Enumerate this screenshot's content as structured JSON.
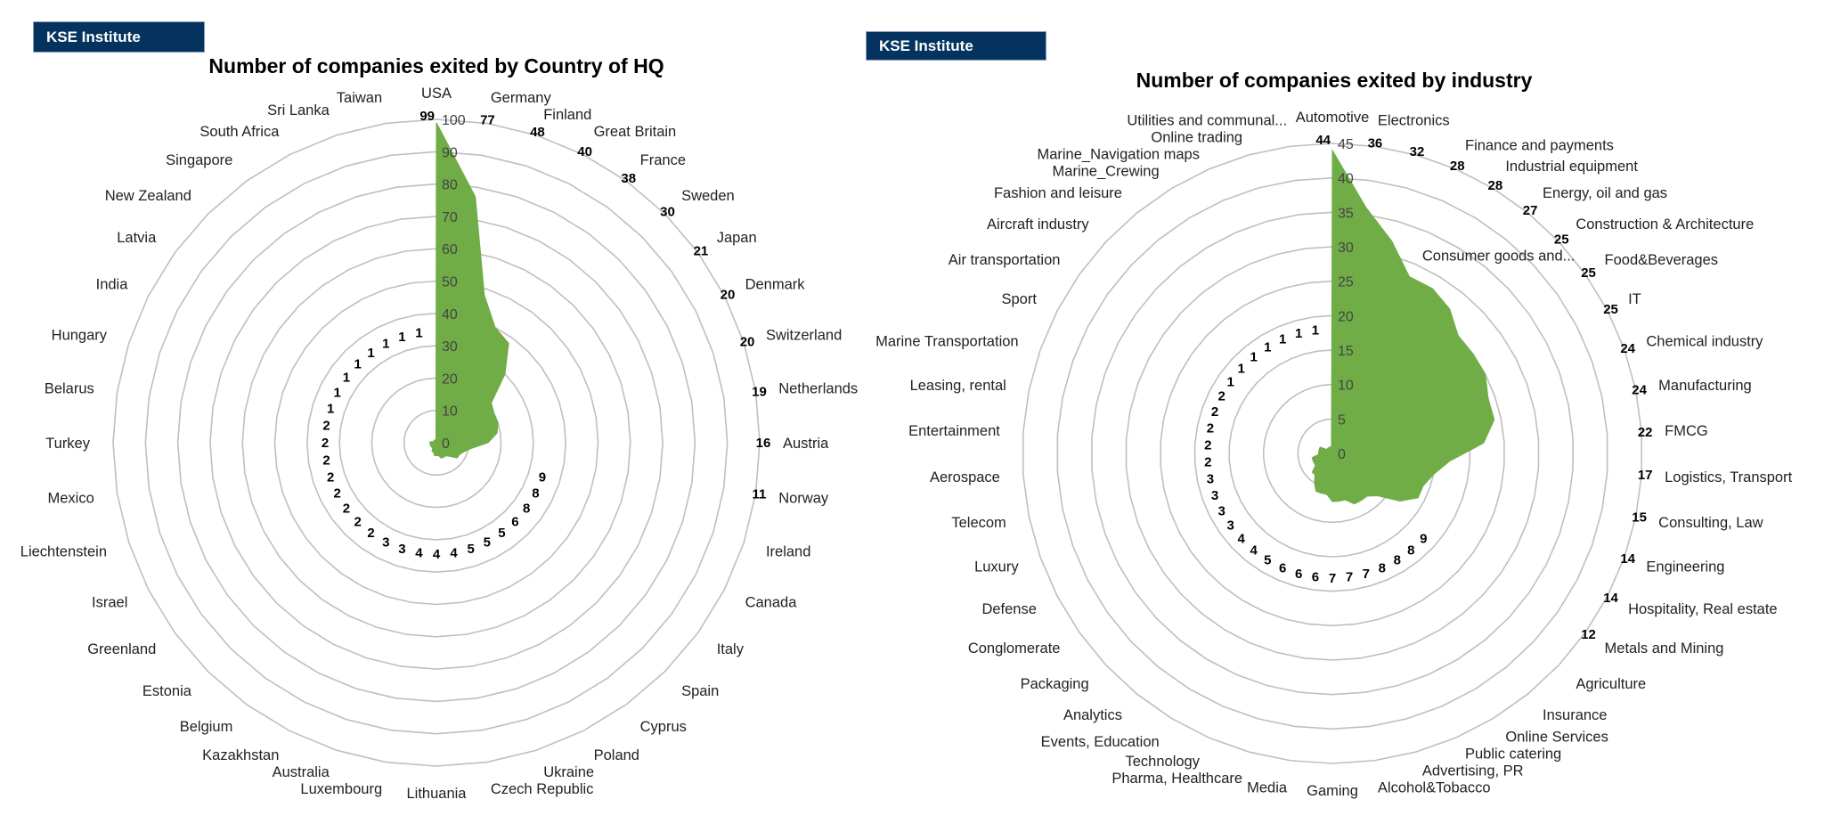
{
  "brand": {
    "label": "KSE Institute"
  },
  "colors": {
    "fill": "#70AD47",
    "ring": "#bfbfbf",
    "brand": "#05335f"
  },
  "chart_data": [
    {
      "type": "radar",
      "title": "Number of companies exited by Country of HQ",
      "rmax": 100,
      "step": 10,
      "ticks": [
        "0",
        "10",
        "20",
        "30",
        "40",
        "50",
        "60",
        "70",
        "80",
        "90",
        "100"
      ],
      "outer_labels": 12,
      "categories": [
        "USA",
        "Germany",
        "Finland",
        "Great Britain",
        "France",
        "Sweden",
        "Japan",
        "Denmark",
        "Switzerland",
        "Netherlands",
        "Austria",
        "Norway",
        "Ireland",
        "Canada",
        "Italy",
        "Spain",
        "Cyprus",
        "Poland",
        "Ukraine",
        "Czech Republic",
        "Lithuania",
        "Luxembourg",
        "Australia",
        "Kazakhstan",
        "Belgium",
        "Estonia",
        "Greenland",
        "Israel",
        "Liechtenstein",
        "Mexico",
        "Turkey",
        "Belarus",
        "Hungary",
        "India",
        "Latvia",
        "New Zealand",
        "Singapore",
        "South Africa",
        "Sri Lanka",
        "Taiwan"
      ],
      "values": [
        99,
        77,
        48,
        40,
        38,
        30,
        21,
        20,
        20,
        19,
        16,
        11,
        9,
        8,
        8,
        6,
        5,
        5,
        5,
        4,
        4,
        4,
        3,
        3,
        2,
        2,
        2,
        2,
        2,
        2,
        2,
        2,
        1,
        1,
        1,
        1,
        1,
        1,
        1,
        1
      ]
    },
    {
      "type": "radar",
      "title": "Number of companies exited by industry",
      "rmax": 45,
      "step": 5,
      "ticks": [
        "0",
        "5",
        "10",
        "15",
        "20",
        "25",
        "30",
        "35",
        "40",
        "45"
      ],
      "outer_labels": 17,
      "categories": [
        "Automotive",
        "Electronics",
        "Consumer goods and...",
        "Finance and payments",
        "Industrial equipment",
        "Energy, oil and gas",
        "Construction & Architecture",
        "Food&Beverages",
        "IT",
        "Chemical industry",
        "Manufacturing",
        "FMCG",
        "Logistics, Transport",
        "Consulting, Law",
        "Engineering",
        "Hospitality, Real estate",
        "Metals and Mining",
        "Agriculture",
        "Insurance",
        "Online Services",
        "Public catering",
        "Advertising, PR",
        "Alcohol&Tobacco",
        "Gaming",
        "Media",
        "Pharma, Healthcare",
        "Technology",
        "Events, Education",
        "Analytics",
        "Packaging",
        "Conglomerate",
        "Defense",
        "Luxury",
        "Telecom",
        "Aerospace",
        "Entertainment",
        "Leasing, rental",
        "Marine Transportation",
        "Sport",
        "Air transportation",
        "Aircraft industry",
        "Fashion and leisure",
        "Marine_Crewing",
        "Marine_Navigation maps",
        "Online trading",
        "Utilities and communal..."
      ],
      "values": [
        44,
        36,
        32,
        28,
        28,
        27,
        25,
        25,
        25,
        24,
        24,
        22,
        17,
        15,
        14,
        14,
        12,
        9,
        8,
        8,
        8,
        7,
        7,
        7,
        6,
        6,
        6,
        5,
        4,
        4,
        3,
        3,
        3,
        3,
        2,
        2,
        2,
        2,
        2,
        1,
        1,
        1,
        1,
        1,
        1,
        1
      ]
    }
  ]
}
